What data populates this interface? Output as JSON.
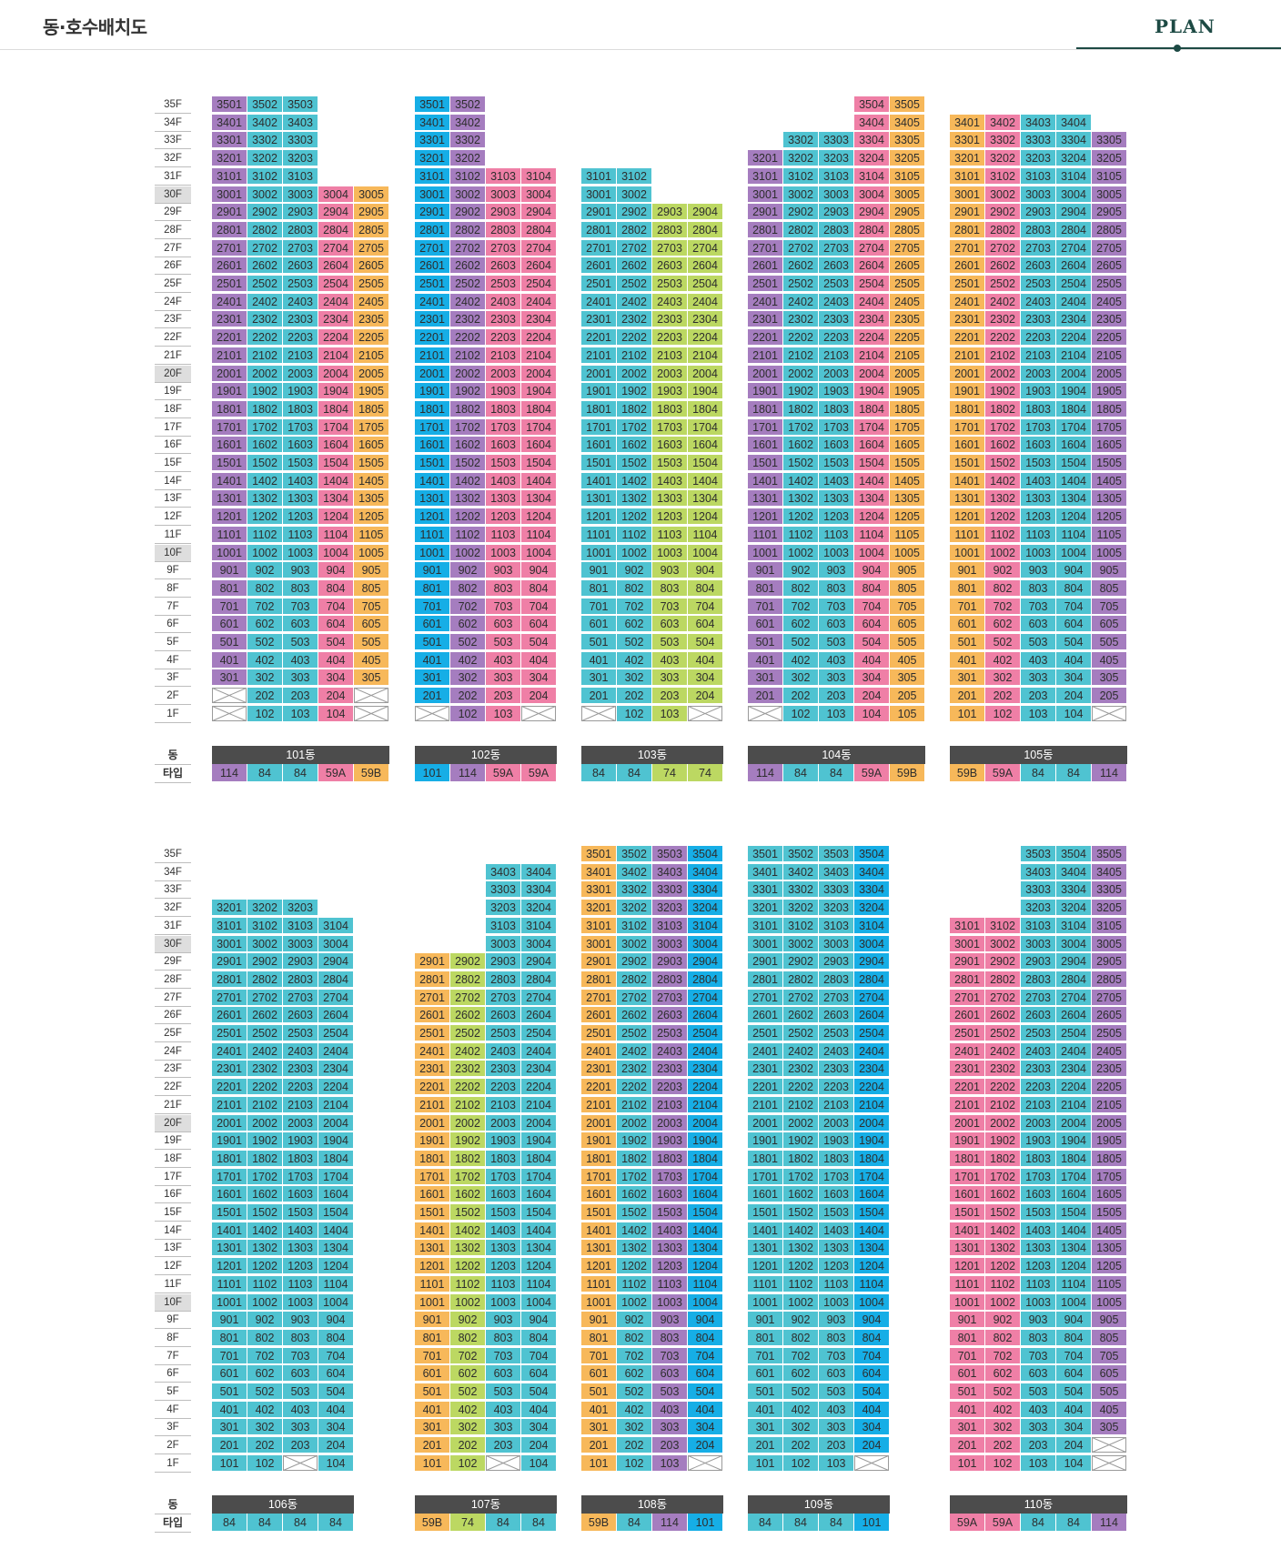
{
  "header": {
    "title": "동·호수배치도",
    "plan_label": "PLAN"
  },
  "legend": {
    "dong_label": "동",
    "type_label": "타입"
  },
  "type_colors": {
    "114": "#a57dbf",
    "84": "#4fc3d1",
    "59A": "#ef7fa6",
    "59B": "#f7b85a",
    "101": "#16aee6",
    "74": "#bcd862"
  },
  "highlight_floors": [
    "30F",
    "20F",
    "10F"
  ],
  "sections": [
    {
      "floors": [
        "35F",
        "34F",
        "33F",
        "32F",
        "31F",
        "30F",
        "29F",
        "28F",
        "27F",
        "26F",
        "25F",
        "24F",
        "23F",
        "22F",
        "21F",
        "20F",
        "19F",
        "18F",
        "17F",
        "16F",
        "15F",
        "14F",
        "13F",
        "12F",
        "11F",
        "10F",
        "9F",
        "8F",
        "7F",
        "6F",
        "5F",
        "4F",
        "3F",
        "2F",
        "1F"
      ],
      "buildings": [
        {
          "name": "101동",
          "types": [
            "114",
            "84",
            "84",
            "59A",
            "59B"
          ],
          "cols": [
            {
              "line": 1,
              "top": 35,
              "pilotis": [
                1,
                2
              ]
            },
            {
              "line": 2,
              "top": 35,
              "pilotis": []
            },
            {
              "line": 3,
              "top": 35,
              "pilotis": []
            },
            {
              "line": 4,
              "top": 30,
              "pilotis": []
            },
            {
              "line": 5,
              "top": 30,
              "pilotis": [
                1,
                2
              ]
            }
          ]
        },
        {
          "name": "102동",
          "types": [
            "101",
            "114",
            "59A",
            "59A"
          ],
          "cols": [
            {
              "line": 1,
              "top": 35,
              "pilotis": [
                1
              ]
            },
            {
              "line": 2,
              "top": 35,
              "pilotis": []
            },
            {
              "line": 3,
              "top": 31,
              "pilotis": []
            },
            {
              "line": 4,
              "top": 31,
              "pilotis": [
                1
              ]
            }
          ]
        },
        {
          "name": "103동",
          "types": [
            "84",
            "84",
            "74",
            "74"
          ],
          "cols": [
            {
              "line": 1,
              "top": 31,
              "pilotis": [
                1
              ]
            },
            {
              "line": 2,
              "top": 31,
              "pilotis": []
            },
            {
              "line": 3,
              "top": 29,
              "pilotis": []
            },
            {
              "line": 4,
              "top": 29,
              "pilotis": [
                1
              ]
            }
          ]
        },
        {
          "name": "104동",
          "types": [
            "114",
            "84",
            "84",
            "59A",
            "59B"
          ],
          "cols": [
            {
              "line": 1,
              "top": 32,
              "pilotis": [
                1
              ]
            },
            {
              "line": 2,
              "top": 33,
              "pilotis": []
            },
            {
              "line": 3,
              "top": 33,
              "pilotis": []
            },
            {
              "line": 4,
              "top": 35,
              "pilotis": []
            },
            {
              "line": 5,
              "top": 35,
              "pilotis": []
            }
          ]
        },
        {
          "name": "105동",
          "types": [
            "59B",
            "59A",
            "84",
            "84",
            "114"
          ],
          "cols": [
            {
              "line": 1,
              "top": 34,
              "pilotis": []
            },
            {
              "line": 2,
              "top": 34,
              "pilotis": []
            },
            {
              "line": 3,
              "top": 34,
              "pilotis": []
            },
            {
              "line": 4,
              "top": 34,
              "pilotis": []
            },
            {
              "line": 5,
              "top": 33,
              "pilotis": [
                1
              ]
            }
          ]
        }
      ]
    },
    {
      "floors": [
        "35F",
        "34F",
        "33F",
        "32F",
        "31F",
        "30F",
        "29F",
        "28F",
        "27F",
        "26F",
        "25F",
        "24F",
        "23F",
        "22F",
        "21F",
        "20F",
        "19F",
        "18F",
        "17F",
        "16F",
        "15F",
        "14F",
        "13F",
        "12F",
        "11F",
        "10F",
        "9F",
        "8F",
        "7F",
        "6F",
        "5F",
        "4F",
        "3F",
        "2F",
        "1F"
      ],
      "buildings": [
        {
          "name": "106동",
          "types": [
            "84",
            "84",
            "84",
            "84"
          ],
          "cols": [
            {
              "line": 1,
              "top": 32,
              "pilotis": []
            },
            {
              "line": 2,
              "top": 32,
              "pilotis": []
            },
            {
              "line": 3,
              "top": 32,
              "pilotis": [
                1
              ]
            },
            {
              "line": 4,
              "top": 31,
              "pilotis": []
            }
          ]
        },
        {
          "name": "107동",
          "types": [
            "59B",
            "74",
            "84",
            "84"
          ],
          "cols": [
            {
              "line": 1,
              "top": 29,
              "pilotis": []
            },
            {
              "line": 2,
              "top": 29,
              "pilotis": []
            },
            {
              "line": 3,
              "top": 34,
              "pilotis": [
                1
              ]
            },
            {
              "line": 4,
              "top": 34,
              "pilotis": []
            }
          ]
        },
        {
          "name": "108동",
          "types": [
            "59B",
            "84",
            "114",
            "101"
          ],
          "cols": [
            {
              "line": 1,
              "top": 35,
              "pilotis": []
            },
            {
              "line": 2,
              "top": 35,
              "pilotis": []
            },
            {
              "line": 3,
              "top": 35,
              "pilotis": []
            },
            {
              "line": 4,
              "top": 35,
              "pilotis": [
                1
              ]
            }
          ]
        },
        {
          "name": "109동",
          "types": [
            "84",
            "84",
            "84",
            "101"
          ],
          "cols": [
            {
              "line": 1,
              "top": 35,
              "pilotis": []
            },
            {
              "line": 2,
              "top": 35,
              "pilotis": []
            },
            {
              "line": 3,
              "top": 35,
              "pilotis": []
            },
            {
              "line": 4,
              "top": 35,
              "pilotis": [
                1
              ]
            }
          ]
        },
        {
          "name": "110동",
          "types": [
            "59A",
            "59A",
            "84",
            "84",
            "114"
          ],
          "cols": [
            {
              "line": 1,
              "top": 31,
              "pilotis": []
            },
            {
              "line": 2,
              "top": 31,
              "pilotis": []
            },
            {
              "line": 3,
              "top": 35,
              "pilotis": []
            },
            {
              "line": 4,
              "top": 35,
              "pilotis": []
            },
            {
              "line": 5,
              "top": 35,
              "pilotis": [
                1,
                2
              ]
            }
          ]
        }
      ]
    }
  ]
}
